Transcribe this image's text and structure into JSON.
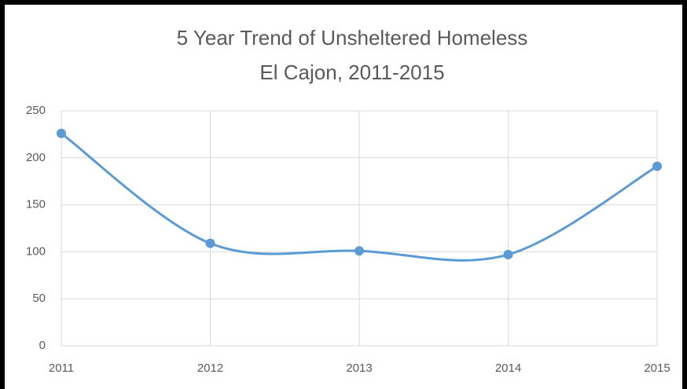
{
  "chart_data": {
    "type": "line",
    "title": [
      "5 Year Trend of Unsheltered Homeless",
      "El Cajon, 2011-2015"
    ],
    "x": [
      2011,
      2012,
      2013,
      2014,
      2015
    ],
    "series": [
      {
        "name": "Unsheltered Homeless",
        "color": "#5b9bd5",
        "values": [
          226,
          109,
          101,
          97,
          191
        ]
      }
    ],
    "xlim": [
      2011,
      2015
    ],
    "xticks": [
      2011,
      2012,
      2013,
      2014,
      2015
    ],
    "ylim": [
      0,
      250
    ],
    "yticks": [
      0,
      50,
      100,
      150,
      200,
      250
    ],
    "grid": true,
    "smooth": true
  }
}
